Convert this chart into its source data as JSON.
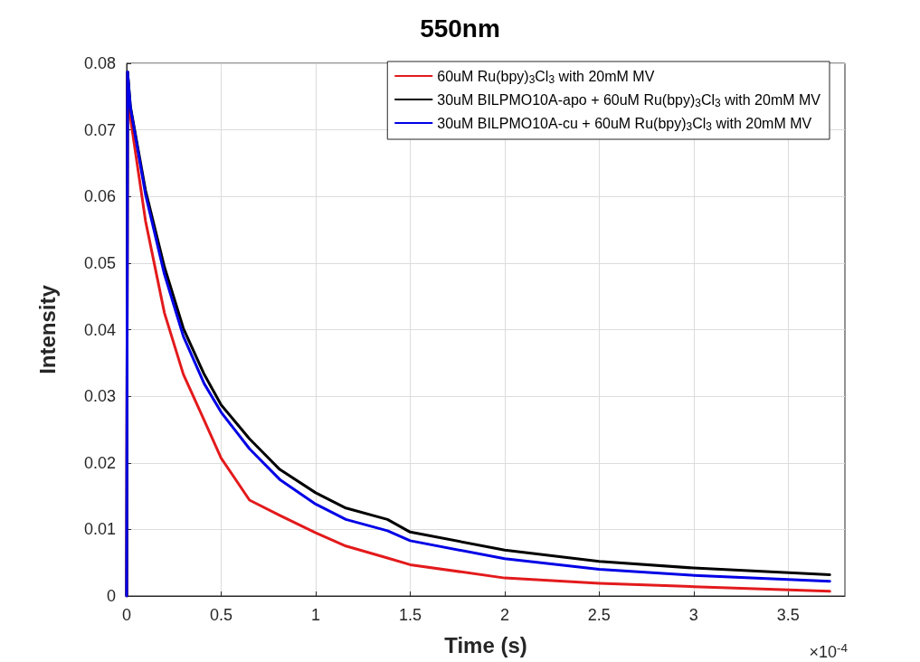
{
  "chart_data": {
    "type": "line",
    "title": "550nm",
    "xlabel": "Time (s)",
    "ylabel": "Intensity",
    "annotations": [
      "×10$^{-4}$"
    ],
    "xlim": [
      0,
      3.8
    ],
    "xticks": [
      0,
      0.5,
      1,
      1.5,
      2,
      2.5,
      3,
      3.5
    ],
    "ylim": [
      0,
      0.08
    ],
    "yticks": [
      0,
      0.01,
      0.02,
      0.03,
      0.04,
      0.05,
      0.06,
      0.07,
      0.08
    ],
    "grid": true,
    "legend": "top right",
    "marker": "none",
    "line_style": "solid",
    "x": [
      0,
      0.005,
      0.02,
      0.1,
      0.2,
      0.3,
      0.41,
      0.5,
      0.65,
      0.81,
      1,
      1.16,
      1.38,
      1.5,
      2,
      2.5,
      3,
      3.72
    ],
    "series": [
      {
        "name": "60uM Ru(bpy)$_{3}$Cl$_{3}$ with 20mM MV",
        "color": "#e31a1c",
        "values": [
          0,
          0.0787,
          0.0718,
          0.0563,
          0.0425,
          0.0333,
          0.0264,
          0.0207,
          0.0144,
          0.0121,
          0.0095,
          0.0075,
          0.0057,
          0.0047,
          0.0027,
          0.0019,
          0.0014,
          0.0007
        ]
      },
      {
        "name": "30uM BILPMO10A-apo + 60uM Ru(bpy)$_{3}$Cl$_{3}$ with 20mM MV",
        "color": "#000000",
        "values": [
          0,
          0.0787,
          0.0735,
          0.0609,
          0.0494,
          0.0402,
          0.0333,
          0.0287,
          0.0236,
          0.019,
          0.0155,
          0.0132,
          0.0115,
          0.0096,
          0.0069,
          0.0052,
          0.0042,
          0.0032
        ]
      },
      {
        "name": "30uM BILPMO10A-cu + 60uM Ru(bpy)$_{3}$Cl$_{3}$ with 20mM MV",
        "color": "#0000e6",
        "values": [
          0,
          0.0787,
          0.0733,
          0.0603,
          0.0483,
          0.039,
          0.0319,
          0.0276,
          0.0221,
          0.0175,
          0.0138,
          0.0115,
          0.0098,
          0.0083,
          0.0056,
          0.004,
          0.0031,
          0.0022
        ]
      }
    ]
  }
}
